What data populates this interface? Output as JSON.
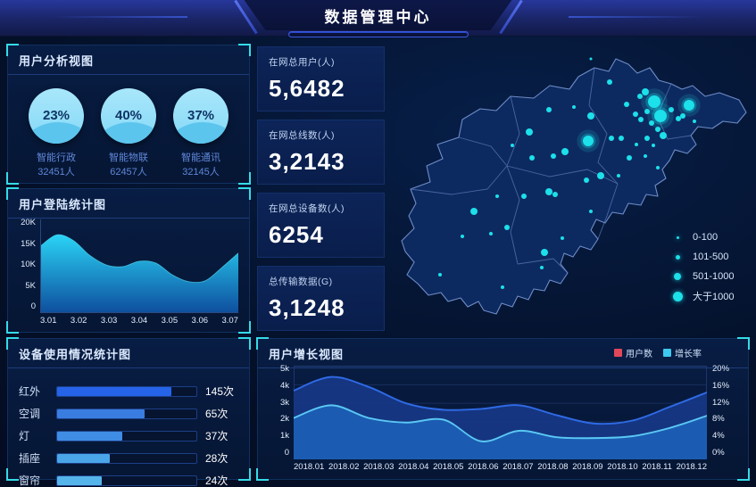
{
  "header": {
    "title": "数据管理中心"
  },
  "colors": {
    "accent_cyan": "#35dbe8",
    "bubble_cyan": "#1ce0ea",
    "panel_bg": "#071a3e",
    "map_land": "#0d2a60",
    "map_border": "#6e8cc8",
    "legend_user_red": "#e0485a",
    "legend_growth_cyan": "#3ec8ee"
  },
  "panels": {
    "user_analysis": {
      "title": "用户分析视图",
      "gauges": [
        {
          "percent": "23%",
          "label": "智能行政",
          "count": "32451人"
        },
        {
          "percent": "40%",
          "label": "智能物联",
          "count": "62457人"
        },
        {
          "percent": "37%",
          "label": "智能通讯",
          "count": "32145人"
        }
      ]
    },
    "login": {
      "title": "用户登陆统计图"
    },
    "device": {
      "title": "设备使用情况统计图"
    },
    "growth": {
      "title": "用户增长视图",
      "legend": [
        {
          "label": "用户数",
          "color": "#e0485a"
        },
        {
          "label": "增长率",
          "color": "#3ec8ee"
        }
      ]
    },
    "map": {
      "legend": [
        {
          "label": "0-100",
          "size": 3
        },
        {
          "label": "101-500",
          "size": 5
        },
        {
          "label": "501-1000",
          "size": 8
        },
        {
          "label": "大于1000",
          "size": 11
        }
      ]
    }
  },
  "cards": [
    {
      "label": "在网总用户(人)",
      "value": "5,6482"
    },
    {
      "label": "在网总线数(人)",
      "value": "3,2143"
    },
    {
      "label": "在网总设备数(人)",
      "value": "6254"
    },
    {
      "label": "总传输数据(G)",
      "value": "3,1248"
    }
  ],
  "chart_data": [
    {
      "id": "login_area",
      "type": "area",
      "title": "用户登陆统计图",
      "x_ticks": [
        "3.01",
        "3.02",
        "3.03",
        "3.04",
        "3.05",
        "3.06",
        "3.07"
      ],
      "y_ticks_top_down": [
        "20K",
        "15K",
        "10K",
        "5K",
        "0"
      ],
      "ylim": [
        0,
        20
      ],
      "x_sample_positions": [
        3.01,
        3.015,
        3.02,
        3.025,
        3.03,
        3.035,
        3.04,
        3.045,
        3.05,
        3.055,
        3.06,
        3.065,
        3.07
      ],
      "values_k": [
        14.5,
        17,
        15.8,
        12.5,
        10.4,
        10,
        11.2,
        10.8,
        8.2,
        6.7,
        6.9,
        9.8,
        13
      ],
      "fill_top": "#2ad4f5",
      "fill_bottom": "#0e4e9e",
      "grid": false
    },
    {
      "id": "device_bar",
      "type": "bar",
      "title": "设备使用情况统计图",
      "categories": [
        "红外",
        "空调",
        "灯",
        "插座",
        "窗帘"
      ],
      "values": [
        145,
        65,
        37,
        28,
        24
      ],
      "unit": "次",
      "labels": [
        "145次",
        "65次",
        "37次",
        "28次",
        "24次"
      ],
      "display_percent": [
        82,
        63,
        47,
        38,
        32
      ],
      "bar_colors": [
        "#2563e8",
        "#3a7de0",
        "#3f8ce4",
        "#4aa6e8",
        "#55b4ea"
      ]
    },
    {
      "id": "growth_area",
      "type": "area",
      "title": "用户增长视图",
      "categories": [
        "2018.01",
        "2018.02",
        "2018.03",
        "2018.04",
        "2018.05",
        "2018.06",
        "2018.07",
        "2018.08",
        "2018.09",
        "2018.10",
        "2018.11",
        "2018.12"
      ],
      "y_left_ticks_top_down": [
        "5k",
        "4k",
        "3k",
        "2k",
        "1k",
        "0"
      ],
      "y_right_ticks_top_down": [
        "20%",
        "16%",
        "12%",
        "8%",
        "4%",
        "0%"
      ],
      "ylim_left_k": [
        0,
        5
      ],
      "ylim_right_pct": [
        0,
        20
      ],
      "grid": true,
      "legend_position": "top-right",
      "series": [
        {
          "name": "用户数",
          "axis": "left",
          "line": "#2f6ae4",
          "fill": "rgba(22,55,133,0.95)",
          "values_k": [
            3.7,
            4.45,
            3.9,
            3.0,
            2.65,
            2.7,
            2.9,
            2.35,
            1.9,
            2.05,
            2.8,
            3.6
          ]
        },
        {
          "name": "增长率",
          "axis": "right",
          "line": "#5ac8f4",
          "fill": "rgba(27,95,180,0.95)",
          "values_pct": [
            8.8,
            11.6,
            8.8,
            7.8,
            8.4,
            3.7,
            6.0,
            4.6,
            4.4,
            4.8,
            6.6,
            9.3
          ]
        }
      ]
    },
    {
      "id": "map_bubbles",
      "type": "scatter",
      "note": "bubble positions in 412x328 map coords, r px; size encodes user count per map legend",
      "dots": [
        [
          232,
          20,
          1.5
        ],
        [
          253,
          46,
          3
        ],
        [
          293,
          57,
          4
        ],
        [
          303,
          68,
          7
        ],
        [
          287,
          62,
          3
        ],
        [
          272,
          71,
          3
        ],
        [
          282,
          82,
          3
        ],
        [
          288,
          88,
          3
        ],
        [
          295,
          79,
          3
        ],
        [
          310,
          84,
          7
        ],
        [
          300,
          92,
          3
        ],
        [
          307,
          99,
          3
        ],
        [
          322,
          77,
          3
        ],
        [
          330,
          87,
          3
        ],
        [
          335,
          84,
          3
        ],
        [
          348,
          90,
          2
        ],
        [
          342,
          72,
          6
        ],
        [
          313,
          106,
          4
        ],
        [
          295,
          109,
          3
        ],
        [
          283,
          116,
          2
        ],
        [
          302,
          117,
          2
        ],
        [
          255,
          109,
          3
        ],
        [
          266,
          109,
          3
        ],
        [
          275,
          131,
          3
        ],
        [
          293,
          129,
          2
        ],
        [
          229,
          112,
          6
        ],
        [
          232,
          84,
          4
        ],
        [
          213,
          74,
          2
        ],
        [
          203,
          124,
          4
        ],
        [
          185,
          77,
          3
        ],
        [
          163,
          102,
          4
        ],
        [
          144,
          117,
          2
        ],
        [
          166,
          131,
          3
        ],
        [
          190,
          129,
          3
        ],
        [
          243,
          151,
          4
        ],
        [
          227,
          156,
          3
        ],
        [
          263,
          151,
          2
        ],
        [
          307,
          142,
          2
        ],
        [
          232,
          191,
          2
        ],
        [
          185,
          169,
          4
        ],
        [
          192,
          172,
          3
        ],
        [
          157,
          174,
          3
        ],
        [
          127,
          174,
          2
        ],
        [
          101,
          191,
          4
        ],
        [
          120,
          216,
          2
        ],
        [
          138,
          209,
          3
        ],
        [
          88,
          219,
          2
        ],
        [
          180,
          237,
          4
        ],
        [
          177,
          254,
          2
        ],
        [
          200,
          221,
          2
        ],
        [
          63,
          262,
          2
        ],
        [
          133,
          276,
          2
        ]
      ]
    }
  ]
}
